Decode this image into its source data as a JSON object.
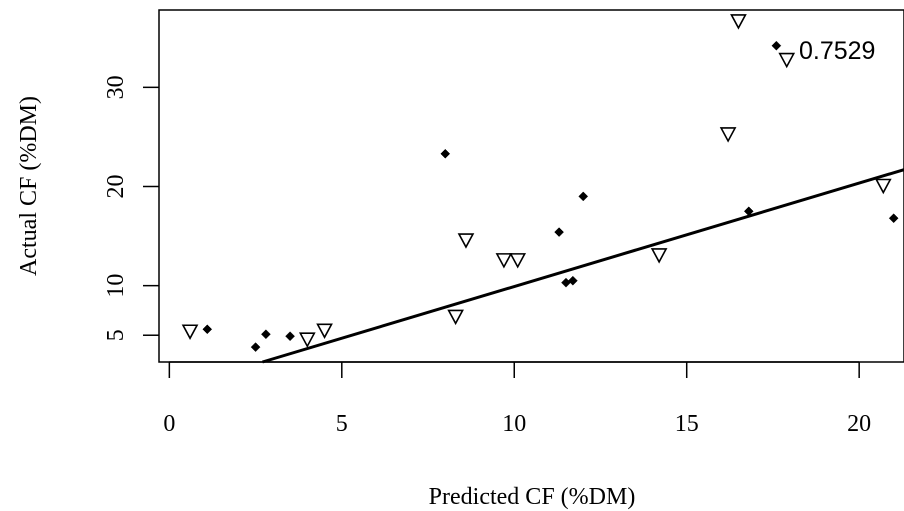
{
  "chart_data": {
    "type": "scatter",
    "xlabel": "Predicted CF (%DM)",
    "ylabel": "Actual CF (%DM)",
    "xlim": [
      -0.3,
      21.3
    ],
    "ylim": [
      2.3,
      37.8
    ],
    "x_ticks": [
      0,
      5,
      10,
      15,
      20
    ],
    "y_ticks": [
      5,
      10,
      20,
      30
    ],
    "grid": false,
    "legend": "none",
    "annotation": "0.7529",
    "series": [
      {
        "marker": "filled-diamond",
        "color": "#000000",
        "points": [
          {
            "x": 1.1,
            "y": 5.6
          },
          {
            "x": 2.5,
            "y": 3.8
          },
          {
            "x": 2.8,
            "y": 5.1
          },
          {
            "x": 3.5,
            "y": 4.9
          },
          {
            "x": 8.0,
            "y": 23.3
          },
          {
            "x": 11.3,
            "y": 15.4
          },
          {
            "x": 11.5,
            "y": 10.3
          },
          {
            "x": 11.7,
            "y": 10.5
          },
          {
            "x": 12.0,
            "y": 19.0
          },
          {
            "x": 16.8,
            "y": 17.5
          },
          {
            "x": 17.6,
            "y": 34.2
          },
          {
            "x": 21.0,
            "y": 16.8
          }
        ]
      },
      {
        "marker": "open-triangle-down",
        "color": "#000000",
        "points": [
          {
            "x": 0.6,
            "y": 5.4
          },
          {
            "x": 4.0,
            "y": 4.6
          },
          {
            "x": 4.5,
            "y": 5.5
          },
          {
            "x": 8.3,
            "y": 6.9
          },
          {
            "x": 8.6,
            "y": 14.6
          },
          {
            "x": 9.7,
            "y": 12.6
          },
          {
            "x": 10.1,
            "y": 12.6
          },
          {
            "x": 14.2,
            "y": 13.1
          },
          {
            "x": 16.2,
            "y": 25.3
          },
          {
            "x": 16.5,
            "y": 36.7
          },
          {
            "x": 17.9,
            "y": 32.8
          },
          {
            "x": 20.7,
            "y": 20.1
          }
        ]
      }
    ],
    "fit_line": {
      "x": [
        2.7,
        21.3
      ],
      "y": [
        2.3,
        21.7
      ]
    }
  }
}
